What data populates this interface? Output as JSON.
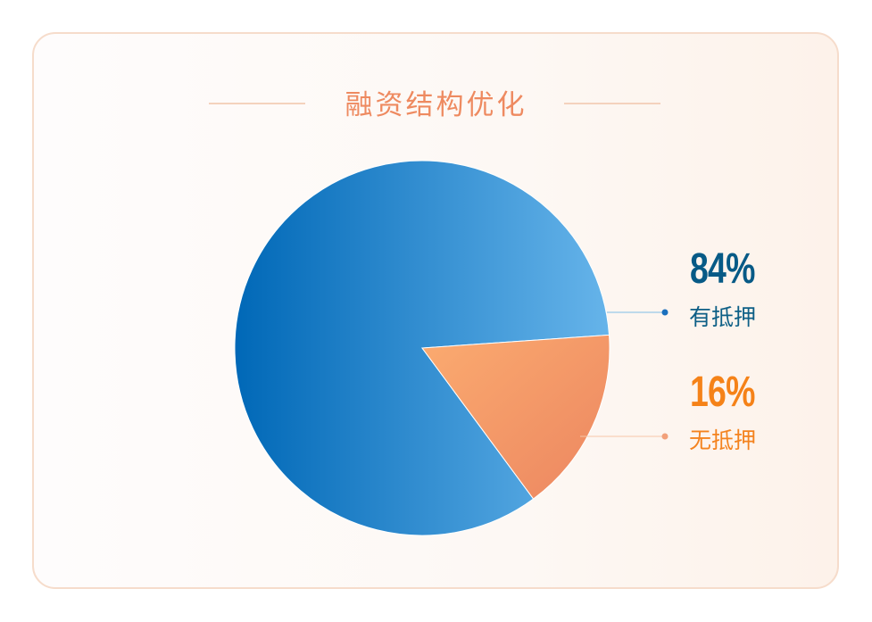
{
  "chart_data": {
    "type": "pie",
    "title": "融资结构优化",
    "slices": [
      {
        "label": "有抵押",
        "value": 84,
        "display": "84%",
        "colors": [
          "#0068b7",
          "#66b4ea"
        ],
        "text_color": "#0e5f86",
        "pct_color": "#075a86"
      },
      {
        "label": "无抵押",
        "value": 16,
        "display": "16%",
        "colors": [
          "#fbab70",
          "#ec8660"
        ],
        "text_color": "#f4831f",
        "pct_color": "#f58218"
      }
    ]
  }
}
